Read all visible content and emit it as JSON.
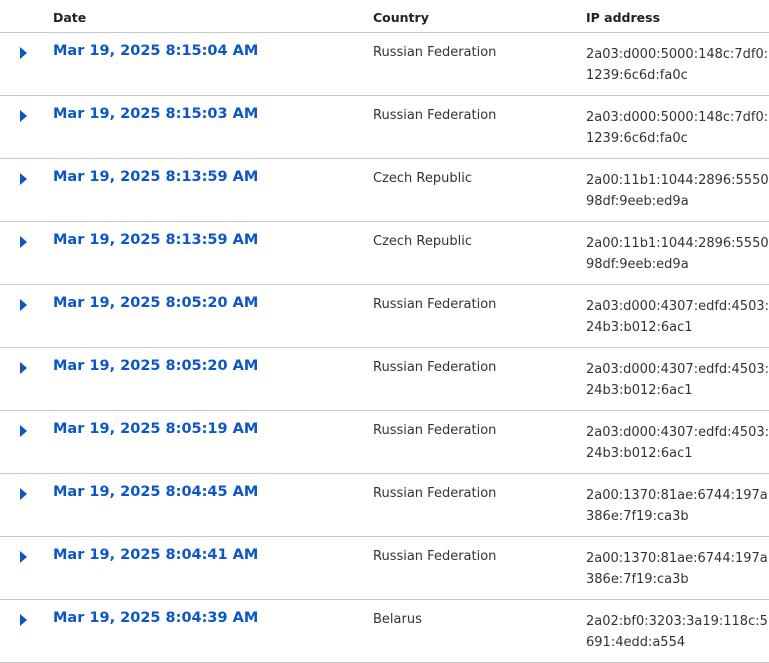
{
  "columns": {
    "date": "Date",
    "country": "Country",
    "ip": "IP address"
  },
  "rows": [
    {
      "date": "Mar 19, 2025 8:15:04 AM",
      "country": "Russian Federation",
      "ip": "2a03:d000:5000:148c:7df0:1239:6c6d:fa0c"
    },
    {
      "date": "Mar 19, 2025 8:15:03 AM",
      "country": "Russian Federation",
      "ip": "2a03:d000:5000:148c:7df0:1239:6c6d:fa0c"
    },
    {
      "date": "Mar 19, 2025 8:13:59 AM",
      "country": "Czech Republic",
      "ip": "2a00:11b1:1044:2896:5550:98df:9eeb:ed9a"
    },
    {
      "date": "Mar 19, 2025 8:13:59 AM",
      "country": "Czech Republic",
      "ip": "2a00:11b1:1044:2896:5550:98df:9eeb:ed9a"
    },
    {
      "date": "Mar 19, 2025 8:05:20 AM",
      "country": "Russian Federation",
      "ip": "2a03:d000:4307:edfd:4503:24b3:b012:6ac1"
    },
    {
      "date": "Mar 19, 2025 8:05:20 AM",
      "country": "Russian Federation",
      "ip": "2a03:d000:4307:edfd:4503:24b3:b012:6ac1"
    },
    {
      "date": "Mar 19, 2025 8:05:19 AM",
      "country": "Russian Federation",
      "ip": "2a03:d000:4307:edfd:4503:24b3:b012:6ac1"
    },
    {
      "date": "Mar 19, 2025 8:04:45 AM",
      "country": "Russian Federation",
      "ip": "2a00:1370:81ae:6744:197a:386e:7f19:ca3b"
    },
    {
      "date": "Mar 19, 2025 8:04:41 AM",
      "country": "Russian Federation",
      "ip": "2a00:1370:81ae:6744:197a:386e:7f19:ca3b"
    },
    {
      "date": "Mar 19, 2025 8:04:39 AM",
      "country": "Belarus",
      "ip": "2a02:bf0:3203:3a19:118c:5691:4edd:a554"
    }
  ],
  "colors": {
    "link": "#0b57c6",
    "divider": "#c8c8c8"
  },
  "icons": {
    "expand": "caret-right-icon"
  }
}
